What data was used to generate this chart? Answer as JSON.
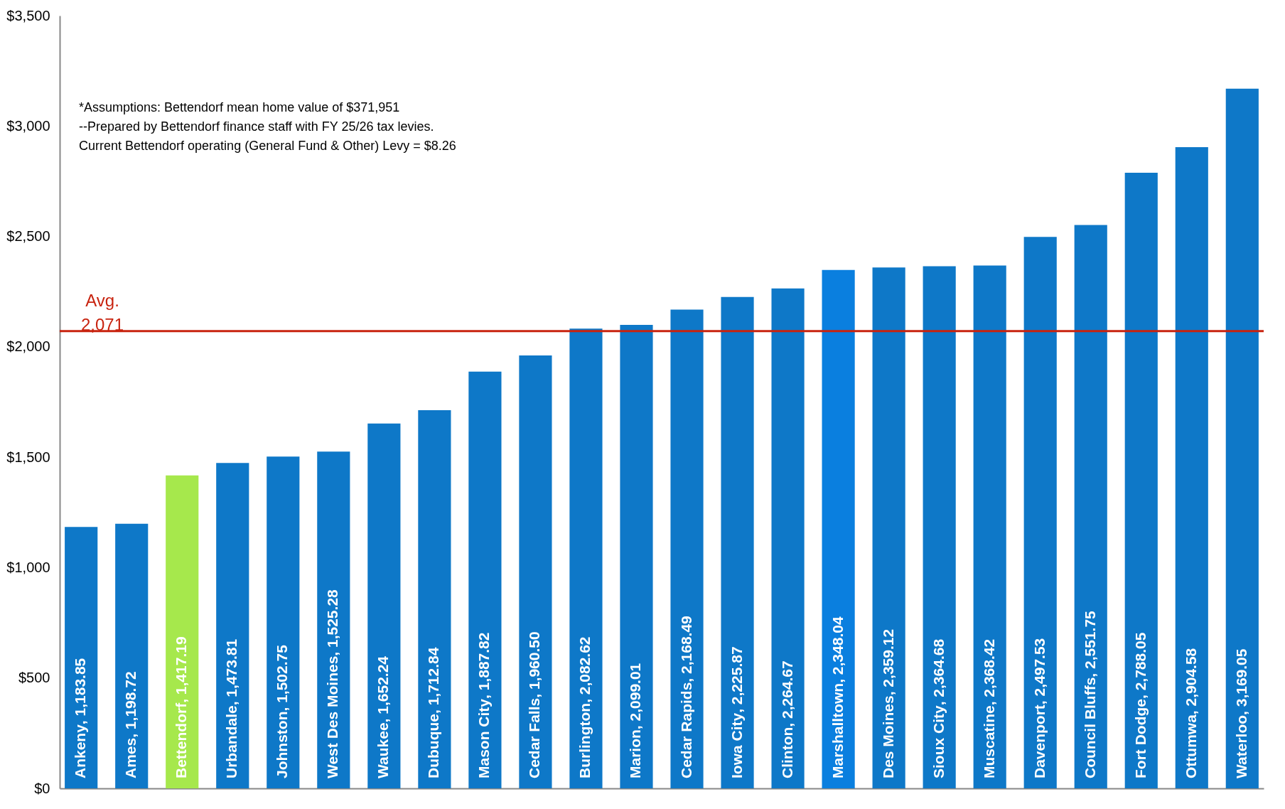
{
  "chart_data": {
    "type": "bar",
    "categories": [
      "Ankeny",
      "Ames",
      "Bettendorf",
      "Urbandale",
      "Johnston",
      "West Des Moines",
      "Waukee",
      "Dubuque",
      "Mason City",
      "Cedar Falls",
      "Burlington",
      "Marion",
      "Cedar Rapids",
      "Iowa City",
      "Clinton",
      "Marshalltown",
      "Des Moines",
      "Sioux City",
      "Muscatine",
      "Davenport",
      "Council Bluffs",
      "Fort Dodge",
      "Ottumwa",
      "Waterloo"
    ],
    "values": [
      1183.85,
      1198.72,
      1417.19,
      1473.81,
      1502.75,
      1525.28,
      1652.24,
      1712.84,
      1887.82,
      1960.5,
      2082.62,
      2099.01,
      2168.49,
      2225.87,
      2264.67,
      2348.04,
      2359.12,
      2364.68,
      2368.42,
      2497.53,
      2551.75,
      2788.05,
      2904.58,
      3169.05
    ],
    "colors": [
      "#0e78c8",
      "#0e78c8",
      "#a6e84c",
      "#0e78c8",
      "#0e78c8",
      "#0e78c8",
      "#0e78c8",
      "#0e78c8",
      "#0e78c8",
      "#0e78c8",
      "#0e78c8",
      "#0e78c8",
      "#0e78c8",
      "#0e78c8",
      "#0e78c8",
      "#0a7fdf",
      "#0e78c8",
      "#0e78c8",
      "#0e78c8",
      "#0e78c8",
      "#0e78c8",
      "#0e78c8",
      "#0e78c8",
      "#0e78c8"
    ],
    "ylim": [
      0,
      3500
    ],
    "yticks": [
      {
        "value": 0,
        "label": "$0"
      },
      {
        "value": 500,
        "label": "$500"
      },
      {
        "value": 1000,
        "label": "$1,000"
      },
      {
        "value": 1500,
        "label": "$1,500"
      },
      {
        "value": 2000,
        "label": "$2,000"
      },
      {
        "value": 2500,
        "label": "$2,500"
      },
      {
        "value": 3000,
        "label": "$3,000"
      },
      {
        "value": 3500,
        "label": "$3,500"
      }
    ],
    "value_labels": [
      ",  1,183.85",
      ",  1,198.72",
      ",  1,417.19",
      ",  1,473.81",
      ",  1,502.75",
      ",  1,525.28",
      ",  1,652.24",
      ",  1,712.84",
      ",  1,887.82",
      ",  1,960.50",
      ",  2,082.62",
      ",  2,099.01",
      ",  2,168.49",
      ",  2,225.87",
      ",  2,264.67",
      ",  2,348.04",
      ",  2,359.12",
      ",  2,364.68",
      ",  2,368.42",
      ",  2,497.53",
      ",  2,551.75",
      ",  2,788.05",
      ",  2,904.58",
      ",  3,169.05"
    ],
    "tick_labels": "y",
    "ref_lines": [
      {
        "axis": "y",
        "value": 2071,
        "label": "Avg.\n2,071",
        "color": "#c8230f"
      }
    ],
    "annotations": [
      "*Assumptions:  Bettendorf mean home value of $371,951",
      "--Prepared by Bettendorf finance staff with FY 25/26 tax levies.",
      "Current Bettendorf operating (General Fund & Other) Levy = $8.26"
    ]
  }
}
